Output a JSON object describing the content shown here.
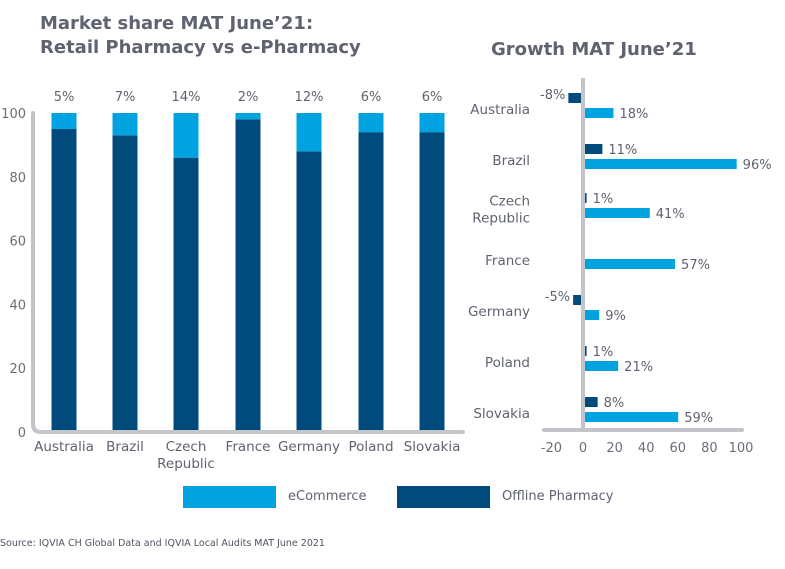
{
  "colors": {
    "ecommerce": "#00a3e0",
    "offline": "#004b7c",
    "axis": "#c4c5ca",
    "text": "#5f6370"
  },
  "legend": [
    {
      "name": "eCommerce",
      "color": "#00a3e0"
    },
    {
      "name": "Offline Pharmacy",
      "color": "#004b7c"
    }
  ],
  "source": "Source: IQVIA CH Global Data and IQVIA Local Audits MAT June 2021",
  "chart_data": [
    {
      "type": "bar",
      "stacked": true,
      "title": "Market share MAT June'21: Retail Pharmacy vs e-Pharmacy",
      "title_lines": [
        "Market share MAT June’21:",
        "Retail Pharmacy vs e-Pharmacy"
      ],
      "categories": [
        "Australia",
        "Brazil",
        "Czech Republic",
        "France",
        "Germany",
        "Poland",
        "Slovakia"
      ],
      "category_lines": [
        [
          "Australia"
        ],
        [
          "Brazil"
        ],
        [
          "Czech",
          "Republic"
        ],
        [
          "France"
        ],
        [
          "Germany"
        ],
        [
          "Poland"
        ],
        [
          "Slovakia"
        ]
      ],
      "series": [
        {
          "name": "Offline Pharmacy",
          "values": [
            95,
            93,
            86,
            98,
            88,
            94,
            94
          ]
        },
        {
          "name": "eCommerce",
          "values": [
            5,
            7,
            14,
            2,
            12,
            6,
            6
          ]
        }
      ],
      "top_labels": [
        "5%",
        "7%",
        "14%",
        "2%",
        "12%",
        "6%",
        "6%"
      ],
      "ylim": [
        0,
        100
      ],
      "yticks": [
        0,
        20,
        40,
        60,
        80,
        100
      ],
      "xlabel": "",
      "ylabel": "",
      "grid": false
    },
    {
      "type": "bar",
      "orientation": "horizontal",
      "title": "Growth MAT June’21",
      "categories": [
        "Australia",
        "Brazil",
        "Czech Republic",
        "France",
        "Germany",
        "Poland",
        "Slovakia"
      ],
      "category_lines": [
        [
          "Australia"
        ],
        [
          "Brazil"
        ],
        [
          "Czech",
          "Republic"
        ],
        [
          "France"
        ],
        [
          "Germany"
        ],
        [
          "Poland"
        ],
        [
          "Slovakia"
        ]
      ],
      "series": [
        {
          "name": "Offline Pharmacy",
          "values": [
            -8,
            11,
            1,
            0,
            -5,
            1,
            8
          ],
          "labels": [
            "-8%",
            "11%",
            "1%",
            "",
            "-5%",
            "1%",
            "8%"
          ]
        },
        {
          "name": "eCommerce",
          "values": [
            18,
            96,
            41,
            57,
            9,
            21,
            59
          ],
          "labels": [
            "18%",
            "96%",
            "41%",
            "57%",
            "9%",
            "21%",
            "59%"
          ]
        }
      ],
      "xlim": [
        -20,
        100
      ],
      "xticks": [
        -20,
        0,
        20,
        40,
        60,
        80,
        100
      ],
      "xlabel": "",
      "ylabel": "",
      "grid": false
    }
  ]
}
